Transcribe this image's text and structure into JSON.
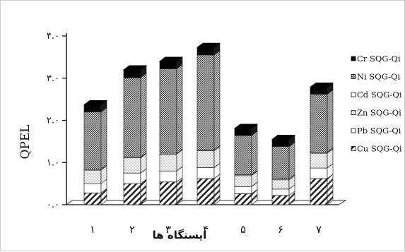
{
  "chart_data": {
    "type": "bar",
    "stacked": true,
    "three_d": true,
    "title": "",
    "xlabel": "ایستگاه ها",
    "ylabel": "QPEL",
    "ylim": [
      0,
      4
    ],
    "yticks": [
      0,
      1,
      2,
      3,
      4
    ],
    "ytick_labels": [
      "۰.۰",
      "۱.۰",
      "۲.۰",
      "۳.۰",
      "۴.۰"
    ],
    "categories": [
      "۱",
      "۲",
      "۳",
      "۴",
      "۵",
      "۶",
      "۷"
    ],
    "legend_position": "right",
    "series": [
      {
        "name": "Cu SQG-Qi",
        "pattern": "hatch",
        "values": [
          0.28,
          0.5,
          0.54,
          0.62,
          0.26,
          0.22,
          0.62
        ]
      },
      {
        "name": "Pb SQG-Qi",
        "pattern": "white",
        "values": [
          0.22,
          0.25,
          0.26,
          0.26,
          0.17,
          0.15,
          0.25
        ]
      },
      {
        "name": "Zn SQG-Qi",
        "pattern": "light-dots",
        "values": [
          0.32,
          0.36,
          0.4,
          0.4,
          0.26,
          0.22,
          0.35
        ]
      },
      {
        "name": "Cd SQG-Qi",
        "pattern": "white",
        "values": [
          0.02,
          0.02,
          0.02,
          0.02,
          0.02,
          0.02,
          0.02
        ]
      },
      {
        "name": "Ni SQG-Qi",
        "pattern": "dense-dots",
        "values": [
          1.36,
          1.88,
          2.0,
          2.25,
          0.93,
          0.77,
          1.38
        ]
      },
      {
        "name": "Cr SQG-Qi",
        "pattern": "black",
        "values": [
          0.17,
          0.19,
          0.18,
          0.18,
          0.17,
          0.17,
          0.17
        ]
      }
    ]
  }
}
